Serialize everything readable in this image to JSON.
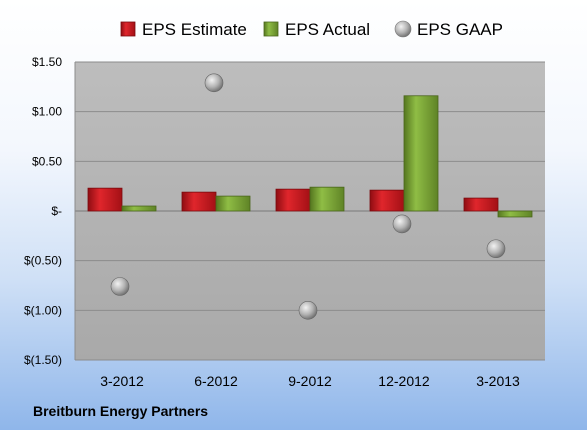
{
  "chart_data": {
    "type": "bar",
    "categories": [
      "3-2012",
      "6-2012",
      "9-2012",
      "12-2012",
      "3-2013"
    ],
    "series": [
      {
        "name": "EPS Estimate",
        "kind": "bar",
        "color": "#c8141a",
        "values": [
          0.23,
          0.19,
          0.22,
          0.21,
          0.13
        ]
      },
      {
        "name": "EPS Actual",
        "kind": "bar",
        "color": "#77a033",
        "values": [
          0.05,
          0.15,
          0.24,
          1.16,
          -0.06
        ]
      },
      {
        "name": "EPS GAAP",
        "kind": "point",
        "color": "#a8a8a8",
        "values": [
          -0.76,
          1.29,
          -1.0,
          -0.13,
          -0.38
        ]
      }
    ],
    "yticks": [
      1.5,
      1.0,
      0.5,
      0,
      -0.5,
      -1.0,
      -1.5
    ],
    "ytick_labels": [
      "$1.50",
      "$1.00",
      "$0.50",
      "$-",
      "$(0.50)",
      "$(1.00)",
      "$(1.50)"
    ],
    "ylim": [
      -1.5,
      1.5
    ],
    "legend_position": "top",
    "grid": true,
    "company": "Breitburn Energy Partners"
  }
}
